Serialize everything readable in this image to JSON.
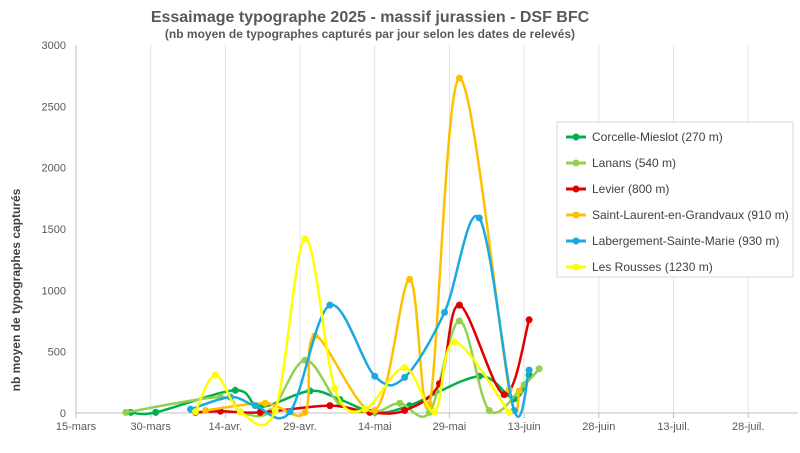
{
  "chart_data": {
    "type": "line",
    "title": "Essaimage typographe 2025 - massif jurassien - DSF BFC",
    "subtitle": "(nb moyen de typographes capturés par jour selon les dates de relevés)",
    "ylabel": "nb moyen de typographes capturés",
    "xlabel": "",
    "ylim": [
      0,
      3000
    ],
    "yticks": [
      0,
      500,
      1000,
      1500,
      2000,
      2500,
      3000
    ],
    "xlim": [
      "2025-03-15",
      "2025-08-07"
    ],
    "xticks": [
      {
        "date": "2025-03-15",
        "label": "15-mars"
      },
      {
        "date": "2025-03-30",
        "label": "30-mars"
      },
      {
        "date": "2025-04-14",
        "label": "14-avr."
      },
      {
        "date": "2025-04-29",
        "label": "29-avr."
      },
      {
        "date": "2025-05-14",
        "label": "14-mai"
      },
      {
        "date": "2025-05-29",
        "label": "29-mai"
      },
      {
        "date": "2025-06-13",
        "label": "13-juin"
      },
      {
        "date": "2025-06-28",
        "label": "28-juin"
      },
      {
        "date": "2025-07-13",
        "label": "13-juil."
      },
      {
        "date": "2025-07-28",
        "label": "28-juil."
      }
    ],
    "grid": "vertical",
    "legend_position": "right",
    "series": [
      {
        "name": "Corcelle-Mieslot (270 m)",
        "color": "#00b050",
        "points": [
          [
            "2025-03-26",
            5
          ],
          [
            "2025-03-31",
            5
          ],
          [
            "2025-04-16",
            185
          ],
          [
            "2025-04-21",
            50
          ],
          [
            "2025-05-01",
            180
          ],
          [
            "2025-05-07",
            110
          ],
          [
            "2025-05-14",
            5
          ],
          [
            "2025-05-21",
            60
          ],
          [
            "2025-06-04",
            300
          ],
          [
            "2025-06-11",
            115
          ],
          [
            "2025-06-14",
            310
          ]
        ]
      },
      {
        "name": "Lanans (540 m)",
        "color": "#92d050",
        "points": [
          [
            "2025-03-25",
            5
          ],
          [
            "2025-04-13",
            130
          ],
          [
            "2025-04-17",
            10
          ],
          [
            "2025-04-23",
            10
          ],
          [
            "2025-04-30",
            430
          ],
          [
            "2025-05-07",
            70
          ],
          [
            "2025-05-14",
            10
          ],
          [
            "2025-05-19",
            80
          ],
          [
            "2025-05-25",
            5
          ],
          [
            "2025-05-31",
            750
          ],
          [
            "2025-06-06",
            20
          ],
          [
            "2025-06-13",
            230
          ],
          [
            "2025-06-16",
            360
          ]
        ]
      },
      {
        "name": "Levier (800 m)",
        "color": "#e00000",
        "points": [
          [
            "2025-04-08",
            5
          ],
          [
            "2025-04-13",
            15
          ],
          [
            "2025-04-21",
            5
          ],
          [
            "2025-05-05",
            60
          ],
          [
            "2025-05-13",
            5
          ],
          [
            "2025-05-20",
            20
          ],
          [
            "2025-05-27",
            240
          ],
          [
            "2025-05-31",
            880
          ],
          [
            "2025-06-09",
            150
          ],
          [
            "2025-06-14",
            760
          ]
        ]
      },
      {
        "name": "Saint-Laurent-en-Grandvaux (910 m)",
        "color": "#ffc000",
        "points": [
          [
            "2025-04-10",
            20
          ],
          [
            "2025-04-22",
            80
          ],
          [
            "2025-04-30",
            5
          ],
          [
            "2025-05-02",
            630
          ],
          [
            "2025-05-14",
            20
          ],
          [
            "2025-05-21",
            1090
          ],
          [
            "2025-05-25",
            70
          ],
          [
            "2025-05-31",
            2730
          ],
          [
            "2025-06-10",
            190
          ],
          [
            "2025-06-12",
            180
          ]
        ]
      },
      {
        "name": "Labergement-Sainte-Marie  (930 m)",
        "color": "#1ca8e0",
        "points": [
          [
            "2025-04-07",
            30
          ],
          [
            "2025-04-15",
            130
          ],
          [
            "2025-04-20",
            60
          ],
          [
            "2025-04-27",
            10
          ],
          [
            "2025-05-05",
            880
          ],
          [
            "2025-05-14",
            300
          ],
          [
            "2025-05-20",
            290
          ],
          [
            "2025-05-28",
            820
          ],
          [
            "2025-06-04",
            1590
          ],
          [
            "2025-06-11",
            20
          ],
          [
            "2025-06-14",
            350
          ]
        ]
      },
      {
        "name": "Les Rousses (1230 m)",
        "color": "#ffff00",
        "points": [
          [
            "2025-04-08",
            10
          ],
          [
            "2025-04-12",
            310
          ],
          [
            "2025-04-17",
            10
          ],
          [
            "2025-04-24",
            20
          ],
          [
            "2025-04-30",
            1420
          ],
          [
            "2025-05-06",
            200
          ],
          [
            "2025-05-12",
            30
          ],
          [
            "2025-05-20",
            370
          ],
          [
            "2025-05-26",
            10
          ],
          [
            "2025-05-30",
            580
          ],
          [
            "2025-06-10",
            5
          ]
        ]
      }
    ]
  }
}
